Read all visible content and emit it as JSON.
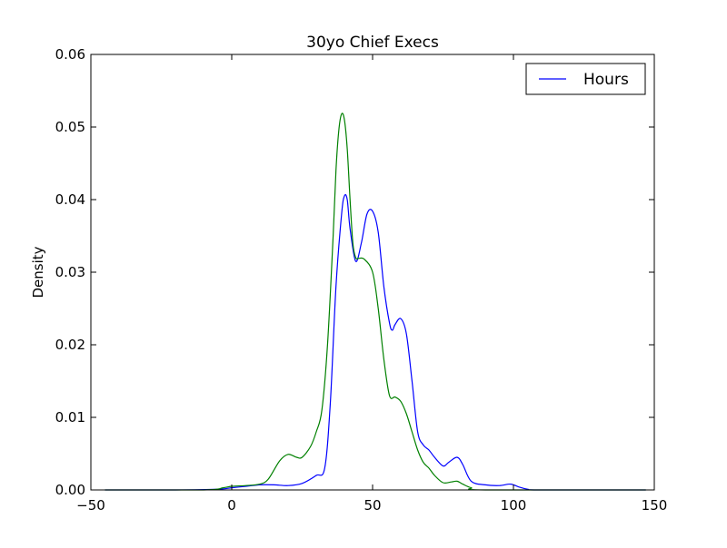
{
  "chart_data": {
    "type": "line",
    "title": "30yo Chief Execs",
    "xlabel": "",
    "ylabel": "Density",
    "xlim": [
      -50,
      150
    ],
    "ylim": [
      0,
      0.06
    ],
    "xticks": [
      -50,
      0,
      50,
      100,
      150
    ],
    "xtick_labels": [
      "−50",
      "0",
      "50",
      "100",
      "150"
    ],
    "yticks": [
      0,
      0.01,
      0.02,
      0.03,
      0.04,
      0.05,
      0.06
    ],
    "ytick_labels": [
      "0.00",
      "0.01",
      "0.02",
      "0.03",
      "0.04",
      "0.05",
      "0.06"
    ],
    "grid": false,
    "legend": {
      "location": "top-right",
      "entries": [
        "Hours"
      ]
    },
    "series": [
      {
        "name": "Hours",
        "color": "#0000ff",
        "x": [
          -45,
          -20,
          -5,
          0,
          5,
          10,
          15,
          20,
          25,
          30,
          33,
          35,
          37,
          39,
          40,
          41,
          42,
          44,
          46,
          48,
          50,
          52,
          54,
          56,
          57,
          58,
          60,
          62,
          64,
          66,
          68,
          70,
          72,
          75,
          77,
          80,
          82,
          85,
          90,
          95,
          99,
          102,
          105,
          110,
          147
        ],
        "y": [
          0,
          0,
          0.0001,
          0.0003,
          0.0005,
          0.0007,
          0.0007,
          0.0006,
          0.0009,
          0.002,
          0.003,
          0.012,
          0.028,
          0.038,
          0.0405,
          0.04,
          0.036,
          0.0315,
          0.034,
          0.038,
          0.0384,
          0.0355,
          0.028,
          0.023,
          0.022,
          0.0228,
          0.0236,
          0.0215,
          0.015,
          0.008,
          0.0062,
          0.0055,
          0.0045,
          0.0033,
          0.0038,
          0.0045,
          0.0035,
          0.0012,
          0.0007,
          0.0006,
          0.0008,
          0.0004,
          0.0001,
          0,
          0
        ]
      },
      {
        "color": "#008000",
        "x": [
          -45,
          -10,
          -3,
          0,
          5,
          10,
          13,
          17,
          20,
          23,
          25,
          28,
          30,
          32,
          34,
          36,
          37,
          38,
          39,
          40,
          41,
          42,
          43,
          44,
          45,
          47,
          50,
          52,
          54,
          56,
          58,
          60,
          62,
          64,
          66,
          68,
          70,
          72,
          75,
          78,
          80,
          82,
          85,
          90,
          147
        ],
        "y": [
          0,
          0,
          0.0003,
          0.0005,
          0.0006,
          0.0008,
          0.0015,
          0.004,
          0.0049,
          0.0045,
          0.0045,
          0.006,
          0.008,
          0.011,
          0.02,
          0.035,
          0.044,
          0.0495,
          0.0518,
          0.051,
          0.047,
          0.04,
          0.034,
          0.032,
          0.0319,
          0.0318,
          0.03,
          0.025,
          0.018,
          0.013,
          0.0128,
          0.0122,
          0.0105,
          0.008,
          0.0055,
          0.0038,
          0.003,
          0.002,
          0.001,
          0.0011,
          0.0012,
          0.0008,
          0.0003,
          0,
          0
        ]
      }
    ]
  }
}
